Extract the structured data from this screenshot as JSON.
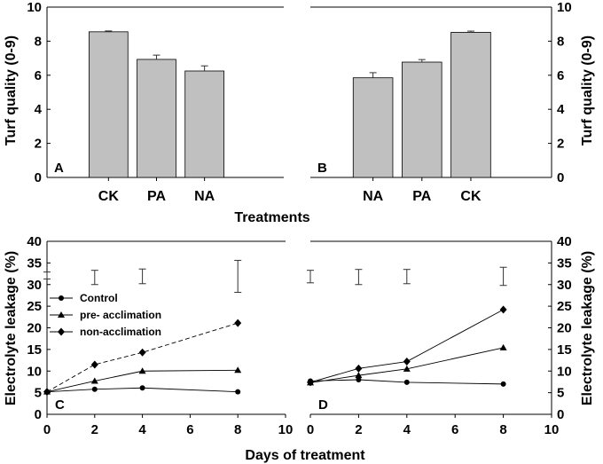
{
  "chart_data": [
    {
      "id": "A",
      "type": "bar",
      "panel_label": "A",
      "categories": [
        "CK",
        "PA",
        "NA"
      ],
      "values": [
        8.55,
        6.93,
        6.25
      ],
      "errors": [
        0.05,
        0.25,
        0.3
      ],
      "ylim": [
        0,
        10
      ],
      "yticks": [
        "0",
        "2",
        "4",
        "6",
        "8",
        "10"
      ],
      "ylabel": "Turf quality (0-9)",
      "ylabel_side": "left"
    },
    {
      "id": "B",
      "type": "bar",
      "panel_label": "B",
      "categories": [
        "NA",
        "PA",
        "CK"
      ],
      "values": [
        5.85,
        6.77,
        8.52
      ],
      "errors": [
        0.3,
        0.15,
        0.07
      ],
      "ylim": [
        0,
        10
      ],
      "yticks": [
        "0",
        "2",
        "4",
        "6",
        "8",
        "10"
      ],
      "ylabel": "Turf quality (0-9)",
      "ylabel_side": "right"
    },
    {
      "id": "C",
      "type": "line",
      "panel_label": "C",
      "xlim": [
        0,
        10
      ],
      "ylim": [
        0,
        40
      ],
      "xticks": [
        "0",
        "2",
        "4",
        "6",
        "8",
        "10"
      ],
      "yticks": [
        "0",
        "5",
        "10",
        "15",
        "20",
        "25",
        "30",
        "35",
        "40"
      ],
      "ylabel": "Electrolyte leakage (%)",
      "ylabel_side": "left",
      "series": [
        {
          "name": "Control",
          "marker": "circle",
          "dash": false,
          "x": [
            0,
            2,
            4,
            8
          ],
          "y": [
            5.2,
            5.8,
            6.1,
            5.2
          ]
        },
        {
          "name": "pre- acclimation",
          "marker": "triangle",
          "dash": false,
          "x": [
            0,
            2,
            4,
            8
          ],
          "y": [
            5.2,
            7.7,
            10.0,
            10.2
          ]
        },
        {
          "name": "non-acclimation",
          "marker": "diamond",
          "dash": true,
          "x": [
            0,
            2,
            4,
            8
          ],
          "y": [
            5.2,
            11.5,
            14.3,
            21.1
          ]
        }
      ],
      "lsd_bars": [
        {
          "x": 0,
          "low": 31.3,
          "high": 32.9
        },
        {
          "x": 2,
          "low": 30.0,
          "high": 33.3
        },
        {
          "x": 4,
          "low": 30.2,
          "high": 33.6
        },
        {
          "x": 8,
          "low": 28.2,
          "high": 35.6
        }
      ],
      "legend": [
        "Control",
        "pre- acclimation",
        "non-acclimation"
      ]
    },
    {
      "id": "D",
      "type": "line",
      "panel_label": "D",
      "xlim": [
        0,
        10
      ],
      "ylim": [
        0,
        40
      ],
      "xticks": [
        "0",
        "2",
        "4",
        "6",
        "8",
        "10"
      ],
      "yticks": [
        "0",
        "5",
        "10",
        "15",
        "20",
        "25",
        "30",
        "35",
        "40"
      ],
      "ylabel": "Electrolyte leakage (%)",
      "ylabel_side": "right",
      "series": [
        {
          "name": "Control",
          "marker": "circle",
          "dash": false,
          "x": [
            0,
            2,
            4,
            8
          ],
          "y": [
            7.7,
            8.0,
            7.4,
            7.0
          ]
        },
        {
          "name": "pre- acclimation",
          "marker": "triangle",
          "dash": false,
          "x": [
            0,
            2,
            4,
            8
          ],
          "y": [
            7.3,
            9.0,
            10.5,
            15.4
          ]
        },
        {
          "name": "non-acclimation",
          "marker": "diamond",
          "dash": false,
          "x": [
            0,
            2,
            4,
            8
          ],
          "y": [
            7.4,
            10.6,
            12.2,
            24.2
          ]
        }
      ],
      "lsd_bars": [
        {
          "x": 0,
          "low": 30.4,
          "high": 33.3
        },
        {
          "x": 2,
          "low": 30.0,
          "high": 33.5
        },
        {
          "x": 4,
          "low": 30.2,
          "high": 33.5
        },
        {
          "x": 8,
          "low": 29.8,
          "high": 34.0
        }
      ]
    }
  ],
  "labels": {
    "xlabel_top": "Treatments",
    "xlabel_bottom": "Days of treatment"
  }
}
